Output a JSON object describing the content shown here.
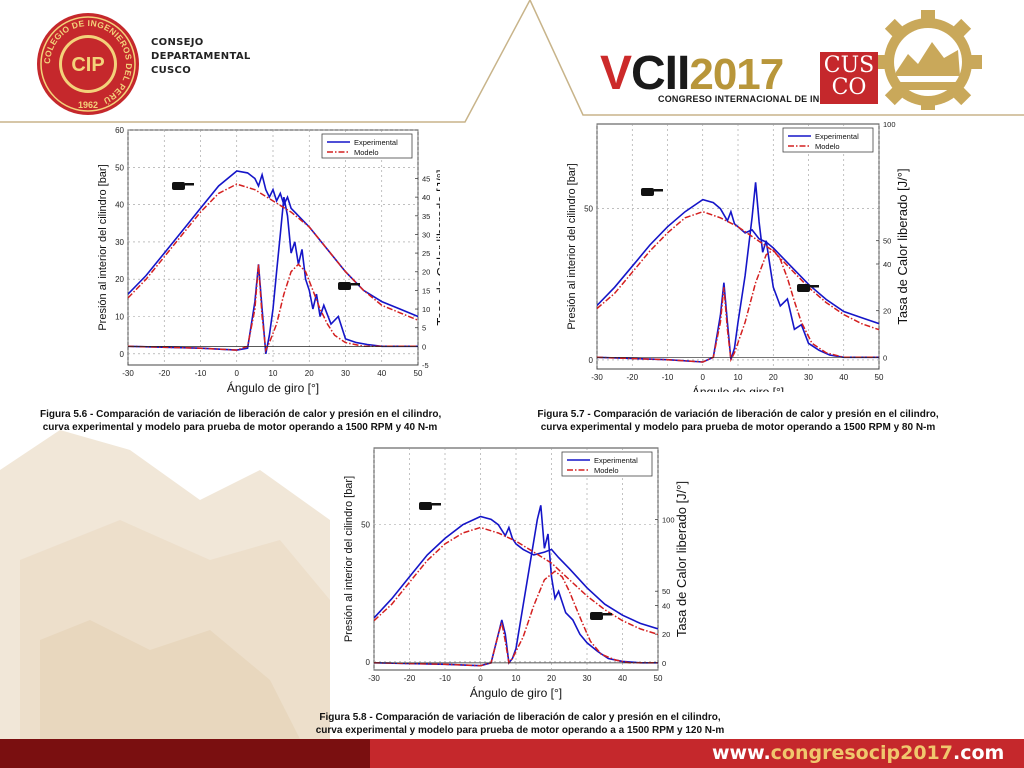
{
  "header": {
    "org_lines": [
      "CONSEJO",
      "DEPARTAMENTAL",
      "CUSCO"
    ],
    "cip_logo": {
      "ring_text": "COLEGIO DE INGENIEROS DEL PERÚ",
      "center_text": "CIP",
      "year": "1962"
    },
    "congress_logo": {
      "roman": "V",
      "cii": "CII",
      "year": "2017",
      "subtitle": "CONGRESO INTERNACIONAL DE INGENIERÍA",
      "cusco_line1": "CUS",
      "cusco_line2": "CO"
    }
  },
  "footer": {
    "url_prefix": "www.",
    "url_middle": "congresocip2017",
    "url_suffix": ".com"
  },
  "colors": {
    "experimental": "#1515c8",
    "modelo": "#d42020",
    "brand_red": "#c5282c",
    "brand_dark_red": "#7a0f10",
    "gold": "#b8963a"
  },
  "chart_data": [
    {
      "type": "line",
      "title": "",
      "xlabel": "Ángulo de giro [°]",
      "ylabel": "Presión al interior del cilindro [bar]",
      "y2label": "Tasa de Calor liberado [J/°]",
      "xlim": [
        -30,
        50
      ],
      "ylim": [
        -3,
        60
      ],
      "y2lim": [
        -5,
        58
      ],
      "x_ticks": [
        "-30",
        "-20",
        "-10",
        "0",
        "10",
        "20",
        "30",
        "40",
        "50"
      ],
      "y_ticks": [
        "0",
        "10",
        "20",
        "30",
        "40",
        "50",
        "60"
      ],
      "y2_ticks": [
        "-5",
        "0",
        "5",
        "10",
        "15",
        "20",
        "25",
        "30",
        "35",
        "40",
        "45"
      ],
      "legend": [
        "Experimental",
        "Modelo"
      ],
      "legend_placement": "top-right",
      "caption_line1": "Figura 5.6 - Comparación de variación de liberación de calor y presión en el cilindro,",
      "caption_line2": "curva experimental y modelo  para prueba de motor operando a 1500 RPM y 40 N-m",
      "series": [
        {
          "name": "Experimental",
          "pressure": {
            "x": [
              -30,
              -25,
              -20,
              -15,
              -10,
              -5,
              0,
              3,
              5,
              6,
              7,
              8,
              9,
              10,
              11,
              12,
              13,
              14,
              15,
              16,
              18,
              20,
              25,
              30,
              35,
              40,
              45,
              50
            ],
            "y": [
              16,
              21,
              27,
              33,
              39,
              45,
              49,
              48.5,
              47,
              45,
              48,
              44,
              42,
              44,
              41,
              43,
              40,
              42,
              39,
              38,
              36,
              34,
              28,
              22,
              17,
              14,
              12,
              10
            ]
          },
          "heat": {
            "x": [
              -30,
              -10,
              0,
              3,
              5,
              6,
              7,
              8,
              9,
              10,
              11,
              12,
              13,
              14,
              15,
              16,
              17,
              18,
              19,
              20,
              21,
              22,
              23,
              24,
              26,
              28,
              30,
              33,
              36,
              40,
              45,
              50
            ],
            "y": [
              0,
              -0.5,
              -1,
              -0.5,
              12,
              22,
              10,
              -2,
              3,
              10,
              20,
              30,
              40,
              35,
              25,
              28,
              22,
              26,
              18,
              15,
              10,
              14,
              8,
              11,
              6,
              8,
              2,
              1,
              0.5,
              0,
              0,
              0
            ]
          }
        },
        {
          "name": "Modelo",
          "pressure": {
            "x": [
              -30,
              -25,
              -20,
              -15,
              -10,
              -5,
              0,
              5,
              10,
              15,
              20,
              25,
              30,
              35,
              40,
              45,
              50
            ],
            "y": [
              15,
              20,
              26,
              32,
              38,
              43,
              45.5,
              44,
              41,
              38,
              34,
              28,
              22,
              17,
              13,
              11,
              9
            ]
          },
          "heat": {
            "x": [
              -30,
              -10,
              0,
              3,
              5,
              6,
              7,
              8,
              9,
              11,
              13,
              15,
              17,
              19,
              21,
              23,
              25,
              27,
              30,
              35,
              40,
              50
            ],
            "y": [
              0,
              -0.5,
              -1,
              0,
              10,
              22,
              8,
              -1,
              1,
              6,
              14,
              20,
              22,
              20,
              15,
              10,
              6,
              3,
              1,
              0,
              0,
              0
            ]
          }
        }
      ]
    },
    {
      "type": "line",
      "title": "",
      "xlabel": "Ángulo de giro [°]",
      "ylabel": "Presión al interior del cilindro [bar]",
      "y2label": "Tasa de Calor liberado [J/°]",
      "xlim": [
        -30,
        50
      ],
      "ylim": [
        -3,
        78
      ],
      "y2lim": [
        -5,
        100
      ],
      "x_ticks": [
        "-30",
        "-20",
        "-10",
        "0",
        "10",
        "20",
        "30",
        "40",
        "50"
      ],
      "y_ticks": [
        "0",
        "50"
      ],
      "y2_ticks": [
        "0",
        "20",
        "40",
        "50",
        "100"
      ],
      "legend": [
        "Experimental",
        "Modelo"
      ],
      "legend_placement": "top-right",
      "caption_line1": "Figura 5.7 - Comparación de variación de liberación de calor y presión en el cilindro,",
      "caption_line2": "curva experimental y modelo  para prueba de motor operando a 1500 RPM y 80 N-m",
      "series": [
        {
          "name": "Experimental",
          "pressure": {
            "x": [
              -30,
              -25,
              -20,
              -15,
              -10,
              -5,
              0,
              3,
              5,
              7,
              8,
              9,
              10,
              12,
              14,
              16,
              18,
              20,
              25,
              30,
              35,
              40,
              45,
              50
            ],
            "y": [
              18,
              24,
              31,
              38,
              44,
              49,
              53,
              52,
              50,
              46,
              49,
              45,
              44,
              42,
              43,
              40,
              39,
              37,
              31,
              25,
              20,
              16,
              14,
              12
            ]
          },
          "heat": {
            "x": [
              -30,
              -10,
              0,
              3,
              5,
              6,
              7,
              8,
              9,
              10,
              12,
              14,
              15,
              16,
              17,
              18,
              19,
              20,
              22,
              24,
              26,
              28,
              30,
              33,
              36,
              40,
              50
            ],
            "y": [
              0,
              -1,
              -2,
              0,
              18,
              32,
              15,
              -1,
              4,
              15,
              35,
              60,
              75,
              58,
              45,
              50,
              40,
              30,
              22,
              25,
              12,
              14,
              6,
              3,
              1,
              0,
              0
            ]
          }
        },
        {
          "name": "Modelo",
          "pressure": {
            "x": [
              -30,
              -25,
              -20,
              -15,
              -10,
              -5,
              0,
              5,
              10,
              15,
              20,
              25,
              30,
              35,
              40,
              45,
              50
            ],
            "y": [
              17,
              22,
              29,
              36,
              42,
              47,
              49,
              47,
              44,
              40,
              36,
              30,
              24,
              19,
              15,
              12,
              10
            ]
          },
          "heat": {
            "x": [
              -30,
              -10,
              0,
              3,
              5,
              6,
              7,
              8,
              9,
              12,
              15,
              18,
              20,
              22,
              24,
              26,
              28,
              31,
              35,
              40,
              50
            ],
            "y": [
              0,
              -1,
              -2,
              0,
              15,
              30,
              12,
              -1,
              2,
              15,
              32,
              44,
              46,
              42,
              34,
              24,
              15,
              6,
              2,
              0,
              0
            ]
          }
        }
      ]
    },
    {
      "type": "line",
      "title": "",
      "xlabel": "Ángulo de giro [°]",
      "ylabel": "Presión al interior del cilindro [bar]",
      "y2label": "Tasa de Calor liberado [J/°]",
      "xlim": [
        -30,
        50
      ],
      "ylim": [
        -3,
        78
      ],
      "y2lim": [
        -5,
        150
      ],
      "x_ticks": [
        "-30",
        "-20",
        "-10",
        "0",
        "10",
        "20",
        "30",
        "40",
        "50"
      ],
      "y_ticks": [
        "0",
        "50"
      ],
      "y2_ticks": [
        "0",
        "20",
        "40",
        "50",
        "100"
      ],
      "legend": [
        "Experimental",
        "Modelo"
      ],
      "legend_placement": "top-right",
      "caption_line1": "Figura 5.8 - Comparación de variación de liberación de calor y presión en el cilindro,",
      "caption_line2": "curva experimental y modelo  para prueba de motor operando a a 1500 RPM y 120 N-m",
      "series": [
        {
          "name": "Experimental",
          "pressure": {
            "x": [
              -30,
              -25,
              -20,
              -15,
              -10,
              -5,
              0,
              3,
              5,
              7,
              8,
              9,
              10,
              12,
              15,
              18,
              20,
              22,
              25,
              30,
              35,
              40,
              45,
              50
            ],
            "y": [
              16,
              23,
              31,
              39,
              45,
              50,
              53,
              52,
              50,
              46,
              49,
              45,
              43,
              41,
              39,
              40,
              41,
              38,
              34,
              27,
              21,
              17,
              14,
              12
            ]
          },
          "heat": {
            "x": [
              -30,
              -10,
              0,
              3,
              5,
              6,
              7,
              8,
              9,
              10,
              12,
              14,
              16,
              17,
              18,
              19,
              20,
              21,
              22,
              24,
              26,
              28,
              30,
              33,
              36,
              40,
              45,
              50
            ],
            "y": [
              0,
              -1,
              -2,
              0,
              20,
              30,
              20,
              0,
              3,
              10,
              40,
              70,
              100,
              110,
              80,
              90,
              60,
              45,
              50,
              35,
              30,
              20,
              14,
              8,
              3,
              1,
              0,
              0
            ]
          }
        },
        {
          "name": "Modelo",
          "pressure": {
            "x": [
              -30,
              -25,
              -20,
              -15,
              -10,
              -5,
              0,
              5,
              10,
              15,
              20,
              25,
              30,
              35,
              40,
              45,
              50
            ],
            "y": [
              15,
              21,
              29,
              37,
              43,
              47,
              49,
              47,
              44,
              40,
              36,
              30,
              24,
              19,
              15,
              12,
              10
            ]
          },
          "heat": {
            "x": [
              -30,
              -10,
              0,
              3,
              5,
              6,
              7,
              8,
              9,
              12,
              15,
              18,
              21,
              23,
              25,
              27,
              29,
              31,
              34,
              38,
              42,
              50
            ],
            "y": [
              0,
              -1,
              -2,
              0,
              20,
              28,
              15,
              0,
              3,
              18,
              40,
              58,
              64,
              60,
              50,
              38,
              26,
              15,
              6,
              2,
              0,
              0
            ]
          }
        }
      ]
    }
  ]
}
